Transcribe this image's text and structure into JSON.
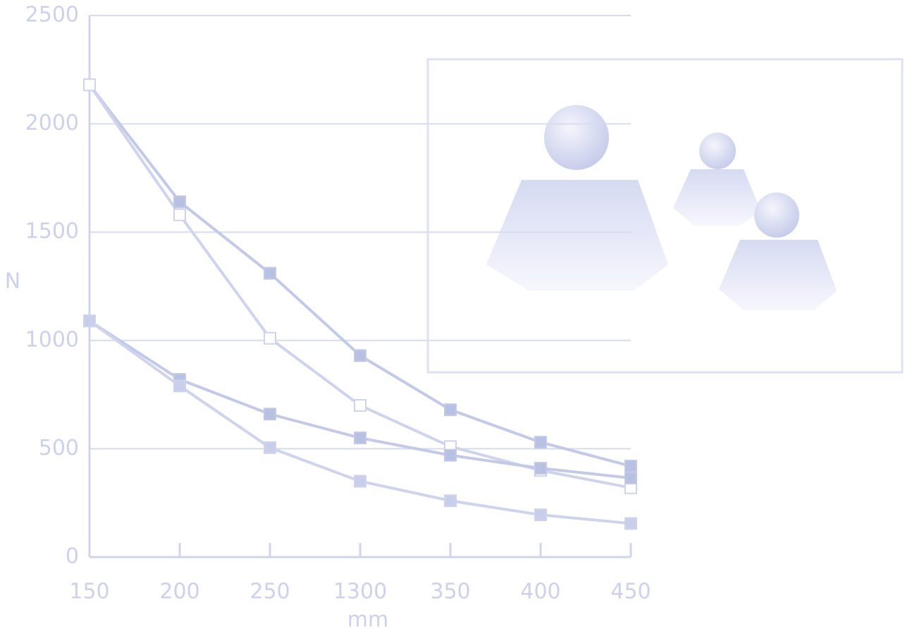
{
  "chart_data": {
    "type": "line",
    "xlabel": "mm",
    "ylabel": "N",
    "categories": [
      "150",
      "200",
      "250",
      "1300",
      "350",
      "400",
      "450"
    ],
    "ylim": [
      0,
      2500
    ],
    "yticks": [
      0,
      500,
      1000,
      1500,
      2000,
      2500
    ],
    "grid": true,
    "series": [
      {
        "color": "#c3c9e6",
        "marker_fill": "#b9c1e2",
        "values": [
          2180,
          1640,
          1310,
          930,
          680,
          530,
          420
        ]
      },
      {
        "color": "#cfd4ec",
        "marker_fill": "#ffffff",
        "values": [
          2180,
          1580,
          1010,
          700,
          510,
          400,
          320
        ]
      },
      {
        "color": "#c3c9e6",
        "marker_fill": "#b9c1e2",
        "values": [
          1090,
          820,
          660,
          550,
          470,
          410,
          365
        ]
      },
      {
        "color": "#cfd4ec",
        "marker_fill": "#c9cfea",
        "values": [
          1090,
          790,
          505,
          350,
          260,
          195,
          155
        ]
      }
    ]
  }
}
